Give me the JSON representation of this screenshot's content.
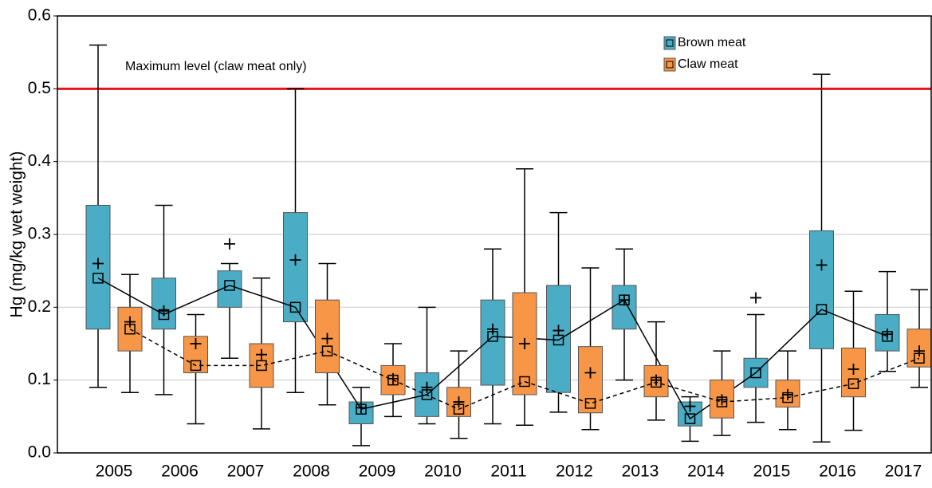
{
  "chart_data": {
    "type": "box",
    "ylabel": "Hg (mg/kg wet weight)",
    "categories": [
      "2005",
      "2006",
      "2007",
      "2008",
      "2009",
      "2010",
      "2011",
      "2012",
      "2013",
      "2014",
      "2015",
      "2016",
      "2017"
    ],
    "ylim": [
      0,
      0.6
    ],
    "yticks": [
      {
        "value": 0,
        "label": "0.0"
      },
      0.1,
      0.2,
      0.3,
      0.4,
      0.5,
      0.6
    ],
    "grid": true,
    "legend": "upper right",
    "reference_line": {
      "value": 0.5,
      "label": "Maximum level (claw meat only)",
      "color": "#e8141b"
    },
    "series": [
      {
        "name": "Brown meat",
        "color": "#4bacc6",
        "line": "solid",
        "whisker_low": [
          0.09,
          0.08,
          0.13,
          0.083,
          0.01,
          0.04,
          0.04,
          0.056,
          0.1,
          0.016,
          0.042,
          0.015,
          0.112
        ],
        "q1": [
          0.17,
          0.17,
          0.2,
          0.18,
          0.04,
          0.05,
          0.093,
          0.083,
          0.17,
          0.037,
          0.09,
          0.143,
          0.14
        ],
        "median": [
          0.24,
          0.19,
          0.23,
          0.2,
          0.06,
          0.08,
          0.16,
          0.155,
          0.21,
          0.047,
          0.11,
          0.197,
          0.16
        ],
        "q3": [
          0.34,
          0.24,
          0.25,
          0.33,
          0.07,
          0.11,
          0.21,
          0.23,
          0.23,
          0.07,
          0.13,
          0.305,
          0.19
        ],
        "whisker_high": [
          0.56,
          0.34,
          0.26,
          0.5,
          0.09,
          0.2,
          0.28,
          0.33,
          0.28,
          0.077,
          0.19,
          0.52,
          0.249
        ],
        "mean": [
          0.26,
          0.195,
          0.287,
          0.265,
          0.062,
          0.09,
          0.17,
          0.168,
          0.21,
          0.064,
          0.213,
          0.258,
          0.163
        ]
      },
      {
        "name": "Claw meat",
        "color": "#f79646",
        "line": "dashed",
        "whisker_low": [
          0.083,
          0.04,
          0.033,
          0.066,
          0.05,
          0.02,
          0.038,
          0.032,
          0.045,
          0.024,
          0.032,
          0.031,
          0.09
        ],
        "q1": [
          0.14,
          0.11,
          0.09,
          0.11,
          0.08,
          0.05,
          0.08,
          0.055,
          0.077,
          0.048,
          0.063,
          0.077,
          0.118
        ],
        "median": [
          0.17,
          0.12,
          0.12,
          0.14,
          0.1,
          0.06,
          0.098,
          0.068,
          0.097,
          0.07,
          0.076,
          0.095,
          0.13
        ],
        "q3": [
          0.2,
          0.16,
          0.15,
          0.21,
          0.12,
          0.09,
          0.22,
          0.146,
          0.12,
          0.1,
          0.1,
          0.144,
          0.17
        ],
        "whisker_high": [
          0.245,
          0.19,
          0.24,
          0.26,
          0.15,
          0.14,
          0.39,
          0.254,
          0.18,
          0.14,
          0.14,
          0.222,
          0.224
        ],
        "mean": [
          0.18,
          0.15,
          0.135,
          0.157,
          0.102,
          0.07,
          0.15,
          0.11,
          0.1,
          0.073,
          0.08,
          0.115,
          0.14
        ]
      }
    ]
  }
}
